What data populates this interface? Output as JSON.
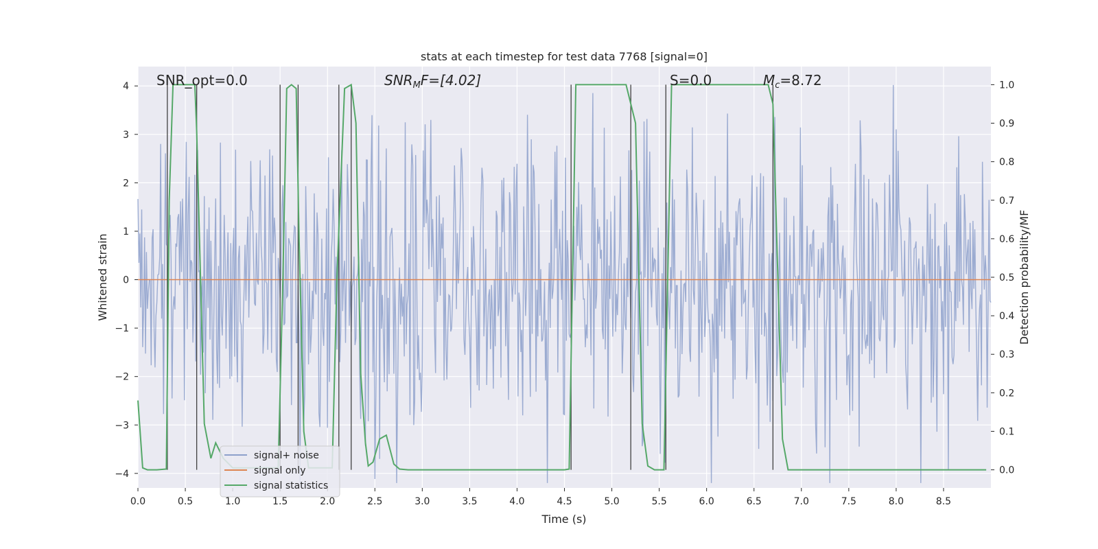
{
  "chart_data": {
    "type": "line",
    "title": "stats at each timestep for test data 7768 [signal=0]",
    "xlabel": "Time (s)",
    "ylabel": "Whitened strain",
    "y2label": "Detection probability/MF",
    "xlim": [
      0.0,
      9.0
    ],
    "ylim": [
      -4.3,
      4.4
    ],
    "y2lim": [
      -0.047,
      1.047
    ],
    "grid": true,
    "legend_placement": "lower-left",
    "xticks": [
      "0.0",
      "0.5",
      "1.0",
      "1.5",
      "2.0",
      "2.5",
      "3.0",
      "3.5",
      "4.0",
      "4.5",
      "5.0",
      "5.5",
      "6.0",
      "6.5",
      "7.0",
      "7.5",
      "8.0",
      "8.5"
    ],
    "yticks": [
      "4",
      "3",
      "2",
      "1",
      "0",
      "−1",
      "−2",
      "−3",
      "−4"
    ],
    "y2ticks": [
      "1.0",
      "0.9",
      "0.8",
      "0.7",
      "0.6",
      "0.5",
      "0.4",
      "0.3",
      "0.2",
      "0.1",
      "0.0"
    ],
    "annotations": [
      {
        "id": "snr-opt",
        "text": "SNR_opt=0.0"
      },
      {
        "id": "snr-mf",
        "base": "SNR",
        "sub": "M",
        "rest": "F=[4.02]"
      },
      {
        "id": "s-val",
        "text": "S=0.0"
      },
      {
        "id": "mc",
        "base": "M",
        "sub": "c",
        "rest": "=8.72"
      }
    ],
    "series": [
      {
        "name": "signal+ noise",
        "axis": "left",
        "color": "#8da0cb",
        "sample_rate_hz": 100,
        "seed": 7768,
        "amplitude": 1.5,
        "x_range": [
          0.0,
          9.0
        ]
      },
      {
        "name": "signal only",
        "axis": "left",
        "color": "#dd8452",
        "values": [
          [
            0.0,
            0.0
          ],
          [
            9.0,
            0.0
          ]
        ]
      },
      {
        "name": "signal statistics",
        "axis": "right",
        "color": "#55a868",
        "points": [
          [
            0.0,
            0.18
          ],
          [
            0.05,
            0.005
          ],
          [
            0.1,
            0.0
          ],
          [
            0.2,
            0.0
          ],
          [
            0.3,
            0.002
          ],
          [
            0.33,
            0.7
          ],
          [
            0.37,
            1.0
          ],
          [
            0.6,
            1.0
          ],
          [
            0.62,
            0.88
          ],
          [
            0.7,
            0.12
          ],
          [
            0.77,
            0.03
          ],
          [
            0.82,
            0.07
          ],
          [
            0.9,
            0.03
          ],
          [
            1.0,
            0.005
          ],
          [
            1.4,
            0.005
          ],
          [
            1.48,
            0.005
          ],
          [
            1.53,
            0.5
          ],
          [
            1.57,
            0.99
          ],
          [
            1.62,
            1.0
          ],
          [
            1.67,
            0.99
          ],
          [
            1.7,
            0.6
          ],
          [
            1.75,
            0.1
          ],
          [
            1.8,
            0.005
          ],
          [
            2.05,
            0.005
          ],
          [
            2.1,
            0.5
          ],
          [
            2.18,
            0.99
          ],
          [
            2.25,
            1.0
          ],
          [
            2.3,
            0.9
          ],
          [
            2.35,
            0.25
          ],
          [
            2.4,
            0.07
          ],
          [
            2.43,
            0.01
          ],
          [
            2.48,
            0.02
          ],
          [
            2.55,
            0.08
          ],
          [
            2.62,
            0.09
          ],
          [
            2.7,
            0.015
          ],
          [
            2.76,
            0.002
          ],
          [
            2.85,
            0.0
          ],
          [
            4.5,
            0.0
          ],
          [
            4.55,
            0.002
          ],
          [
            4.62,
            1.0
          ],
          [
            5.15,
            1.0
          ],
          [
            5.25,
            0.9
          ],
          [
            5.32,
            0.12
          ],
          [
            5.38,
            0.01
          ],
          [
            5.45,
            0.0
          ],
          [
            5.55,
            0.0
          ],
          [
            5.59,
            0.5
          ],
          [
            5.63,
            1.0
          ],
          [
            6.65,
            1.0
          ],
          [
            6.7,
            0.95
          ],
          [
            6.8,
            0.08
          ],
          [
            6.86,
            0.0
          ],
          [
            8.95,
            0.0
          ]
        ]
      }
    ],
    "vertical_markers": [
      0.31,
      0.62,
      1.5,
      1.69,
      2.12,
      2.25,
      4.57,
      5.2,
      5.57,
      6.7
    ]
  }
}
